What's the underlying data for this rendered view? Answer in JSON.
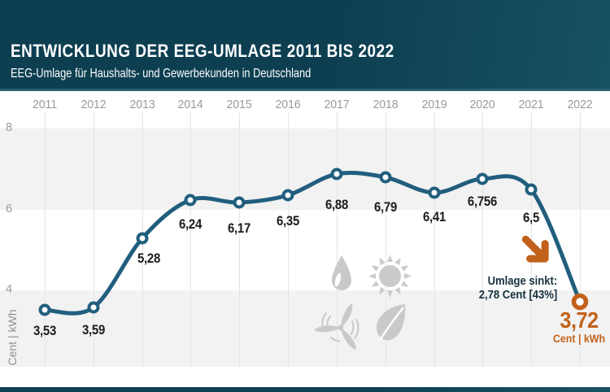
{
  "header": {
    "title": "ENTWICKLUNG DER EEG-UMLAGE 2011 BIS 2022",
    "subtitle": "EEG-Umlage für Haushalts- und Gewerbekunden in Deutschland"
  },
  "chart_data": {
    "type": "line",
    "title": "Entwicklung der EEG-Umlage 2011 bis 2022",
    "x": [
      2011,
      2012,
      2013,
      2014,
      2015,
      2016,
      2017,
      2018,
      2019,
      2020,
      2021,
      2022
    ],
    "series": [
      {
        "name": "EEG-Umlage",
        "values": [
          3.53,
          3.59,
          5.28,
          6.24,
          6.17,
          6.35,
          6.88,
          6.79,
          6.41,
          6.756,
          6.5,
          3.72
        ]
      }
    ],
    "value_labels": [
      "3,53",
      "3,59",
      "5,28",
      "6,24",
      "6,17",
      "6,35",
      "6,88",
      "6,79",
      "6,41",
      "6,756",
      "6,5",
      "3,72"
    ],
    "ylabel": "Cent | kWh",
    "yticks": [
      8,
      6,
      4
    ],
    "ylim": [
      2,
      8.9
    ],
    "x_axis_position": "top",
    "grid": "vertical year gridlines, alternating horizontal bands",
    "legend_position": "none",
    "highlight_index": 11,
    "colors": {
      "line": "#215e7e",
      "highlight": "#c2611a",
      "band": "#f2f2f2",
      "axis_text": "#9b9b9b",
      "value_text": "#1c1c1a",
      "header_bg": "#0d3f51"
    }
  },
  "annotation": {
    "line1": "Umlage sinkt:",
    "line2": "2,78 Cent [43%]",
    "final_value": "3,72",
    "final_unit": "Cent | kWh"
  },
  "watermark_icons": [
    "water-drop-icon",
    "sun-icon",
    "wind-turbine-icon",
    "leaf-icon"
  ]
}
